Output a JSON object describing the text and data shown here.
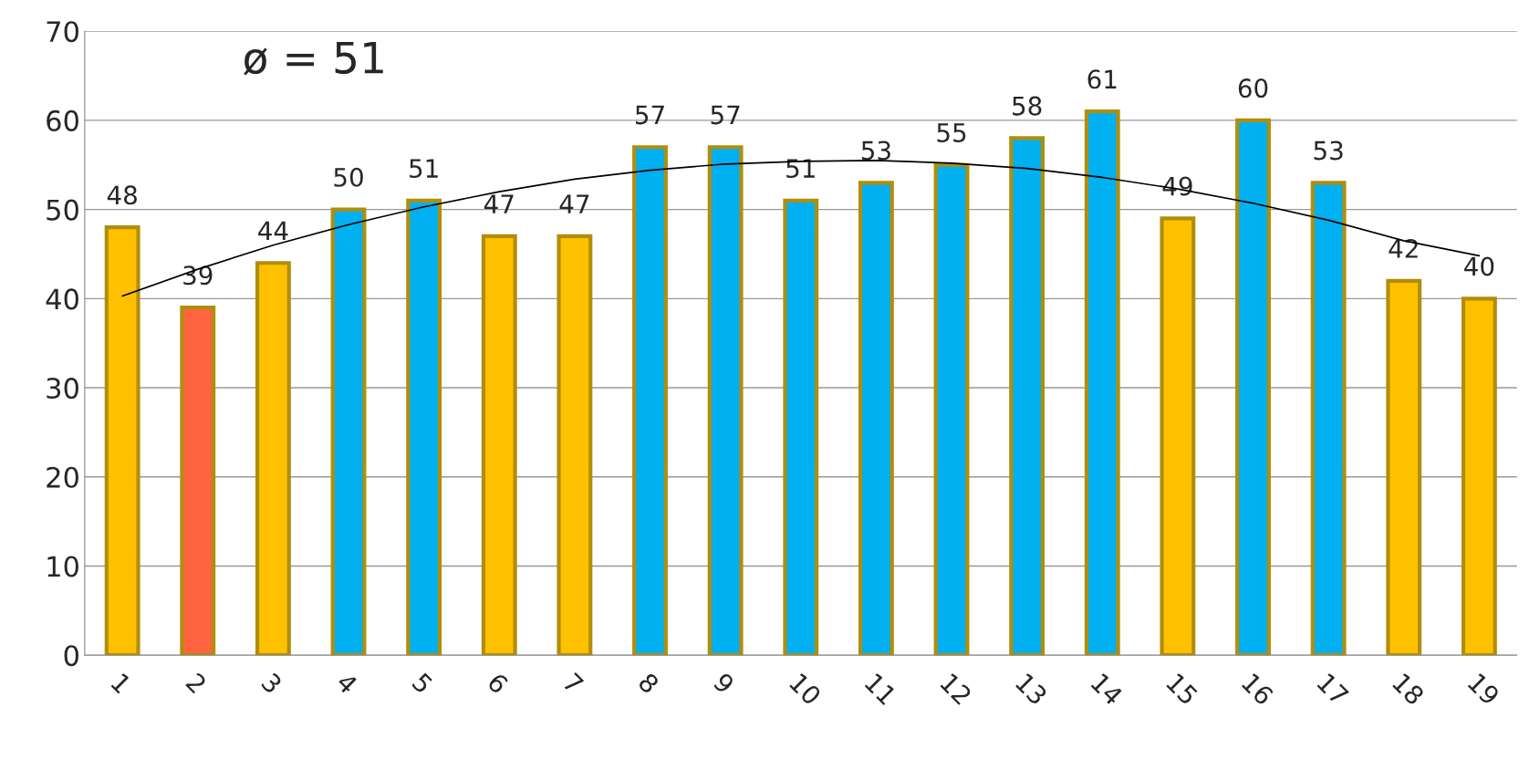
{
  "chart_data": {
    "type": "bar",
    "categories": [
      "1",
      "2",
      "3",
      "4",
      "5",
      "6",
      "7",
      "8",
      "9",
      "10",
      "11",
      "12",
      "13",
      "14",
      "15",
      "16",
      "17",
      "18",
      "19"
    ],
    "series": [
      {
        "values": [
          48,
          39,
          44,
          50,
          51,
          47,
          47,
          57,
          57,
          51,
          53,
          55,
          58,
          61,
          49,
          60,
          53,
          42,
          40
        ],
        "value_labels": [
          "48",
          "39",
          "44",
          "50",
          "51",
          "47",
          "47",
          "57",
          "57",
          "51",
          "53",
          "55",
          "58",
          "61",
          "49",
          "60",
          "53",
          "42",
          "40"
        ],
        "colors": [
          "#ffc000",
          "#ff6340",
          "#ffc000",
          "#00b0f0",
          "#00b0f0",
          "#ffc000",
          "#ffc000",
          "#00b0f0",
          "#00b0f0",
          "#00b0f0",
          "#00b0f0",
          "#00b0f0",
          "#00b0f0",
          "#00b0f0",
          "#ffc000",
          "#00b0f0",
          "#00b0f0",
          "#ffc000",
          "#ffc000"
        ]
      },
      {
        "type": "line",
        "color": "#000000",
        "x": [
          "1",
          "2",
          "3",
          "4",
          "5",
          "6",
          "7",
          "8",
          "9",
          "10",
          "11",
          "12",
          "13",
          "14",
          "15",
          "16",
          "17",
          "18",
          "19"
        ],
        "values": [
          40.3,
          43.3,
          46.0,
          48.3,
          50.3,
          52.0,
          53.4,
          54.4,
          55.1,
          55.4,
          55.5,
          55.2,
          54.6,
          53.6,
          52.3,
          50.7,
          48.8,
          46.5,
          44.8
        ]
      }
    ],
    "ylim": [
      0,
      70
    ],
    "yticks": [
      0,
      10,
      20,
      30,
      40,
      50,
      60,
      70
    ],
    "grid": "y",
    "legend": false,
    "annotations": [
      "ø = 51"
    ]
  }
}
